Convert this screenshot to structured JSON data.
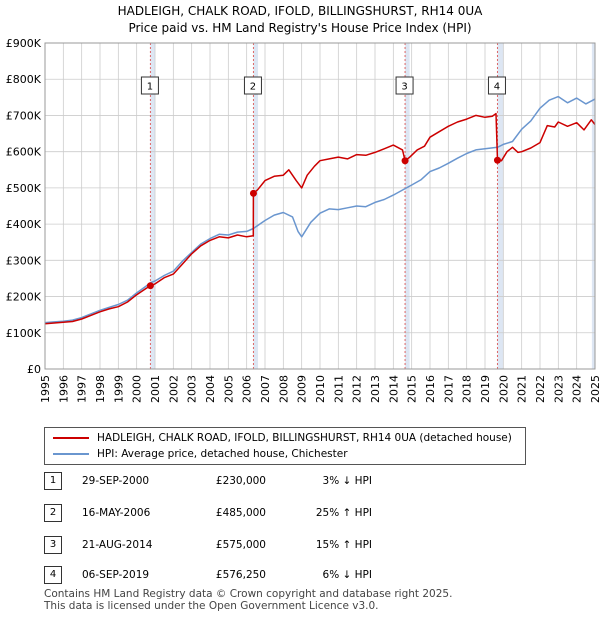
{
  "title_line1": "HADLEIGH, CHALK ROAD, IFOLD, BILLINGSHURST, RH14 0UA",
  "title_line2": "Price paid vs. HM Land Registry's House Price Index (HPI)",
  "colors": {
    "property": "#cc0000",
    "hpi": "#6a96cf",
    "marker_line": "#dd6666",
    "shade": "#dde6f3"
  },
  "chart_data": {
    "type": "line",
    "title": "HADLEIGH, CHALK ROAD, IFOLD, BILLINGSHURST, RH14 0UA — Price paid vs. HM Land Registry's House Price Index (HPI)",
    "xlabel": "",
    "ylabel": "",
    "xlim": [
      1995,
      2025
    ],
    "ylim": [
      0,
      900000
    ],
    "yticks": [
      {
        "v": 0,
        "label": "£0"
      },
      {
        "v": 100000,
        "label": "£100K"
      },
      {
        "v": 200000,
        "label": "£200K"
      },
      {
        "v": 300000,
        "label": "£300K"
      },
      {
        "v": 400000,
        "label": "£400K"
      },
      {
        "v": 500000,
        "label": "£500K"
      },
      {
        "v": 600000,
        "label": "£600K"
      },
      {
        "v": 700000,
        "label": "£700K"
      },
      {
        "v": 800000,
        "label": "£800K"
      },
      {
        "v": 900000,
        "label": "£900K"
      }
    ],
    "xticks": [
      "1995",
      "1996",
      "1997",
      "1998",
      "1999",
      "2000",
      "2001",
      "2002",
      "2003",
      "2004",
      "2005",
      "2006",
      "2007",
      "2008",
      "2009",
      "2010",
      "2011",
      "2012",
      "2013",
      "2014",
      "2015",
      "2016",
      "2017",
      "2018",
      "2019",
      "2020",
      "2021",
      "2022",
      "2023",
      "2024",
      "2025"
    ],
    "grid": true,
    "shaded_regions": [
      [
        2000.75,
        2001.0
      ],
      [
        2006.37,
        2006.62
      ],
      [
        2014.64,
        2014.89
      ],
      [
        2019.68,
        2020.0
      ],
      [
        2024.83,
        2025.0
      ]
    ],
    "series": [
      {
        "name": "HADLEIGH, CHALK ROAD, IFOLD, BILLINGSHURST, RH14 0UA (detached house)",
        "color": "#cc0000",
        "points": [
          [
            1995.0,
            125000
          ],
          [
            1995.5,
            127000
          ],
          [
            1996.0,
            129000
          ],
          [
            1996.5,
            131000
          ],
          [
            1997.0,
            138000
          ],
          [
            1997.5,
            148000
          ],
          [
            1998.0,
            158000
          ],
          [
            1998.5,
            166000
          ],
          [
            1999.0,
            172000
          ],
          [
            1999.5,
            185000
          ],
          [
            2000.0,
            205000
          ],
          [
            2000.5,
            222000
          ],
          [
            2000.75,
            230000
          ],
          [
            2001.0,
            235000
          ],
          [
            2001.5,
            252000
          ],
          [
            2002.0,
            262000
          ],
          [
            2002.5,
            290000
          ],
          [
            2003.0,
            318000
          ],
          [
            2003.5,
            340000
          ],
          [
            2004.0,
            355000
          ],
          [
            2004.5,
            365000
          ],
          [
            2005.0,
            362000
          ],
          [
            2005.5,
            370000
          ],
          [
            2006.0,
            365000
          ],
          [
            2006.36,
            368000
          ],
          [
            2006.37,
            485000
          ],
          [
            2006.6,
            495000
          ],
          [
            2007.0,
            520000
          ],
          [
            2007.5,
            532000
          ],
          [
            2008.0,
            535000
          ],
          [
            2008.3,
            550000
          ],
          [
            2008.7,
            520000
          ],
          [
            2009.0,
            500000
          ],
          [
            2009.3,
            535000
          ],
          [
            2009.7,
            560000
          ],
          [
            2010.0,
            575000
          ],
          [
            2010.5,
            580000
          ],
          [
            2011.0,
            585000
          ],
          [
            2011.5,
            580000
          ],
          [
            2012.0,
            592000
          ],
          [
            2012.5,
            590000
          ],
          [
            2013.0,
            598000
          ],
          [
            2013.5,
            608000
          ],
          [
            2014.0,
            618000
          ],
          [
            2014.5,
            605000
          ],
          [
            2014.64,
            575000
          ],
          [
            2014.9,
            585000
          ],
          [
            2015.3,
            605000
          ],
          [
            2015.7,
            615000
          ],
          [
            2016.0,
            640000
          ],
          [
            2016.5,
            655000
          ],
          [
            2017.0,
            670000
          ],
          [
            2017.5,
            682000
          ],
          [
            2018.0,
            690000
          ],
          [
            2018.5,
            700000
          ],
          [
            2019.0,
            695000
          ],
          [
            2019.4,
            698000
          ],
          [
            2019.6,
            705000
          ],
          [
            2019.68,
            576250
          ],
          [
            2019.9,
            575000
          ],
          [
            2020.2,
            600000
          ],
          [
            2020.5,
            612000
          ],
          [
            2020.8,
            598000
          ],
          [
            2021.0,
            600000
          ],
          [
            2021.5,
            610000
          ],
          [
            2022.0,
            625000
          ],
          [
            2022.4,
            672000
          ],
          [
            2022.8,
            668000
          ],
          [
            2023.0,
            682000
          ],
          [
            2023.5,
            670000
          ],
          [
            2024.0,
            680000
          ],
          [
            2024.4,
            660000
          ],
          [
            2024.8,
            688000
          ],
          [
            2025.0,
            675000
          ]
        ]
      },
      {
        "name": "HPI: Average price, detached house, Chichester",
        "color": "#6a96cf",
        "points": [
          [
            1995.0,
            128000
          ],
          [
            1995.5,
            130000
          ],
          [
            1996.0,
            132000
          ],
          [
            1996.5,
            135000
          ],
          [
            1997.0,
            142000
          ],
          [
            1997.5,
            152000
          ],
          [
            1998.0,
            162000
          ],
          [
            1998.5,
            170000
          ],
          [
            1999.0,
            178000
          ],
          [
            1999.5,
            190000
          ],
          [
            2000.0,
            210000
          ],
          [
            2000.5,
            228000
          ],
          [
            2000.75,
            238000
          ],
          [
            2001.0,
            243000
          ],
          [
            2001.5,
            258000
          ],
          [
            2002.0,
            270000
          ],
          [
            2002.5,
            298000
          ],
          [
            2003.0,
            322000
          ],
          [
            2003.5,
            345000
          ],
          [
            2004.0,
            360000
          ],
          [
            2004.5,
            372000
          ],
          [
            2005.0,
            370000
          ],
          [
            2005.5,
            378000
          ],
          [
            2006.0,
            380000
          ],
          [
            2006.37,
            388000
          ],
          [
            2007.0,
            410000
          ],
          [
            2007.5,
            425000
          ],
          [
            2008.0,
            432000
          ],
          [
            2008.5,
            420000
          ],
          [
            2008.8,
            380000
          ],
          [
            2009.0,
            365000
          ],
          [
            2009.5,
            405000
          ],
          [
            2010.0,
            430000
          ],
          [
            2010.5,
            442000
          ],
          [
            2011.0,
            440000
          ],
          [
            2011.5,
            445000
          ],
          [
            2012.0,
            450000
          ],
          [
            2012.5,
            448000
          ],
          [
            2013.0,
            460000
          ],
          [
            2013.5,
            468000
          ],
          [
            2014.0,
            480000
          ],
          [
            2014.64,
            498000
          ],
          [
            2015.0,
            508000
          ],
          [
            2015.5,
            522000
          ],
          [
            2016.0,
            545000
          ],
          [
            2016.5,
            555000
          ],
          [
            2017.0,
            568000
          ],
          [
            2017.5,
            582000
          ],
          [
            2018.0,
            595000
          ],
          [
            2018.5,
            605000
          ],
          [
            2019.0,
            608000
          ],
          [
            2019.68,
            612000
          ],
          [
            2020.0,
            620000
          ],
          [
            2020.5,
            628000
          ],
          [
            2021.0,
            662000
          ],
          [
            2021.5,
            685000
          ],
          [
            2022.0,
            720000
          ],
          [
            2022.5,
            742000
          ],
          [
            2023.0,
            752000
          ],
          [
            2023.5,
            735000
          ],
          [
            2024.0,
            748000
          ],
          [
            2024.5,
            732000
          ],
          [
            2025.0,
            745000
          ]
        ]
      }
    ],
    "sales": [
      {
        "label": "1",
        "x": 2000.75,
        "y": 230000
      },
      {
        "label": "2",
        "x": 2006.37,
        "y": 485000
      },
      {
        "label": "3",
        "x": 2014.64,
        "y": 575000
      },
      {
        "label": "4",
        "x": 2019.68,
        "y": 576250
      }
    ]
  },
  "legend": {
    "property": "HADLEIGH, CHALK ROAD, IFOLD, BILLINGSHURST, RH14 0UA (detached house)",
    "hpi": "HPI: Average price, detached house, Chichester"
  },
  "transactions": [
    {
      "num": "1",
      "date": "29-SEP-2000",
      "price": "£230,000",
      "hpi": "3% ↓ HPI"
    },
    {
      "num": "2",
      "date": "16-MAY-2006",
      "price": "£485,000",
      "hpi": "25% ↑ HPI"
    },
    {
      "num": "3",
      "date": "21-AUG-2014",
      "price": "£575,000",
      "hpi": "15% ↑ HPI"
    },
    {
      "num": "4",
      "date": "06-SEP-2019",
      "price": "£576,250",
      "hpi": "6% ↓ HPI"
    }
  ],
  "footer": {
    "line1": "Contains HM Land Registry data © Crown copyright and database right 2025.",
    "line2": "This data is licensed under the Open Government Licence v3.0."
  }
}
